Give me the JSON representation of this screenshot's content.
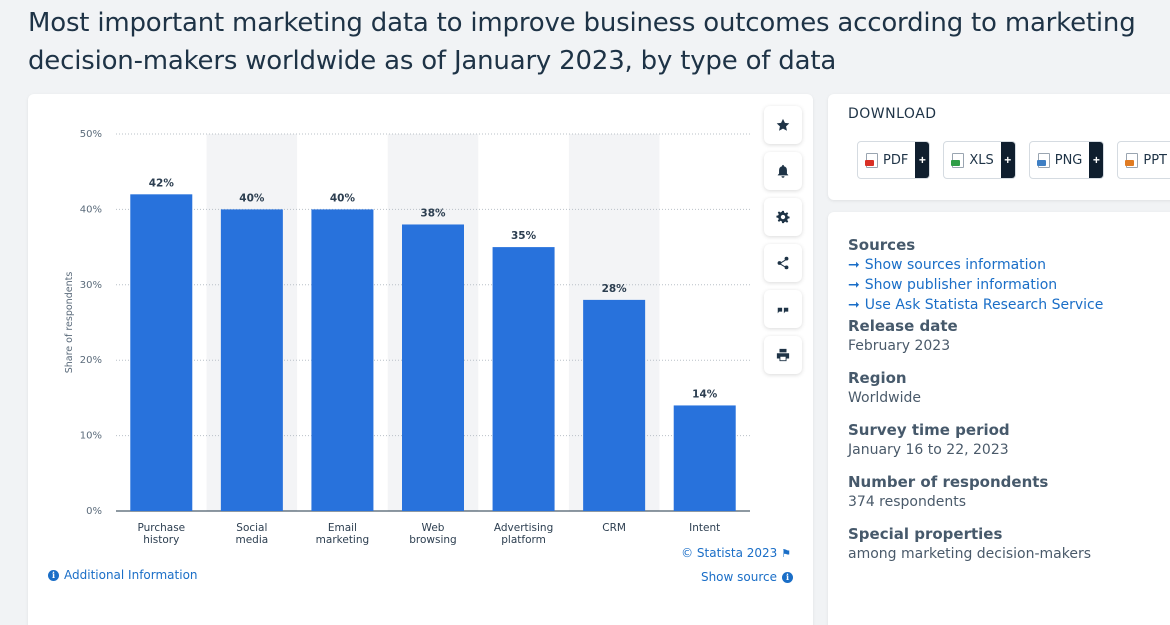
{
  "page_title": "Most important marketing data to improve business outcomes according to marketing decision-makers worldwide as of January 2023, by type of data",
  "toolbar": {
    "icons": [
      "star-icon",
      "bell-icon",
      "gear-icon",
      "share-icon",
      "quote-icon",
      "print-icon"
    ]
  },
  "footer": {
    "copyright": "© Statista 2023",
    "additional_info": "Additional Information",
    "show_source": "Show source"
  },
  "download": {
    "title": "DOWNLOAD",
    "buttons": [
      {
        "label": "PDF",
        "color": "#d93025"
      },
      {
        "label": "XLS",
        "color": "#2e9d46"
      },
      {
        "label": "PNG",
        "color": "#3f7fc4"
      },
      {
        "label": "PPT",
        "color": "#e07b22"
      }
    ]
  },
  "info": {
    "sources_heading": "Sources",
    "source_links": [
      "Show sources information",
      "Show publisher information",
      "Use Ask Statista Research Service"
    ],
    "release_date_heading": "Release date",
    "release_date": "February 2023",
    "region_heading": "Region",
    "region": "Worldwide",
    "survey_period_heading": "Survey time period",
    "survey_period": "January 16 to 22, 2023",
    "respondents_heading": "Number of respondents",
    "respondents": "374 respondents",
    "special_heading": "Special properties",
    "special": "among marketing decision-makers"
  },
  "colors": {
    "bar": "#2872dc",
    "band": "#f3f4f6",
    "link": "#1a6ec7"
  },
  "chart_data": {
    "type": "bar",
    "categories": [
      [
        "Purchase",
        "history"
      ],
      [
        "Social",
        "media"
      ],
      [
        "Email",
        "marketing"
      ],
      [
        "Web",
        "browsing"
      ],
      [
        "Advertising",
        "platform"
      ],
      [
        "CRM"
      ],
      [
        "Intent"
      ]
    ],
    "values": [
      42,
      40,
      40,
      38,
      35,
      28,
      14
    ],
    "value_labels": [
      "42%",
      "40%",
      "40%",
      "38%",
      "35%",
      "28%",
      "14%"
    ],
    "ylabel": "Share of respondents",
    "ylim": [
      0,
      50
    ],
    "yticks": [
      0,
      10,
      20,
      30,
      40,
      50
    ],
    "ytick_labels": [
      "0%",
      "10%",
      "20%",
      "30%",
      "40%",
      "50%"
    ],
    "grid": true
  }
}
